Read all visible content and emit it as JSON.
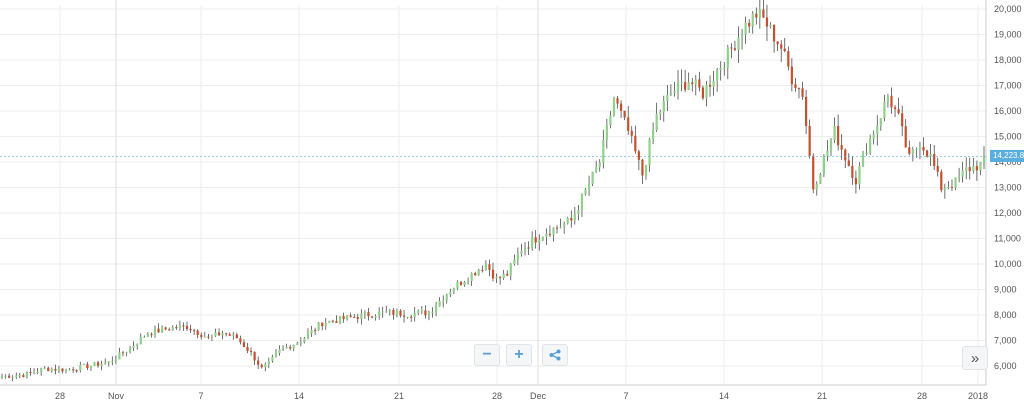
{
  "chart_data": {
    "type": "candlestick",
    "y_ticks": [
      "20,000",
      "19,000",
      "18,000",
      "17,000",
      "16,000",
      "15,000",
      "14,000",
      "13,000",
      "12,000",
      "11,000",
      "10,000",
      "9,000",
      "8,000",
      "7,000",
      "6,000"
    ],
    "y_range": [
      5400,
      20100
    ],
    "x_ticks": [
      "28",
      "Nov",
      "7",
      "14",
      "21",
      "28",
      "Dec",
      "7",
      "14",
      "21",
      "28",
      "2018"
    ],
    "current_price_label": "14,223.8",
    "current_price": 14223.8,
    "grid": true,
    "colors": {
      "up": "#8fd18a",
      "down": "#c5502f",
      "wick": "#333333",
      "grid": "#eeeeee",
      "accent": "#5aaede"
    },
    "anchors": [
      [
        0,
        5600
      ],
      [
        6,
        5650
      ],
      [
        12,
        5900
      ],
      [
        18,
        5850
      ],
      [
        24,
        6000
      ],
      [
        30,
        6150
      ],
      [
        36,
        6700
      ],
      [
        41,
        7300
      ],
      [
        48,
        7500
      ],
      [
        52,
        7550
      ],
      [
        58,
        7100
      ],
      [
        62,
        7300
      ],
      [
        66,
        7100
      ],
      [
        70,
        6500
      ],
      [
        73,
        5900
      ],
      [
        75,
        6100
      ],
      [
        78,
        6600
      ],
      [
        84,
        7000
      ],
      [
        90,
        7700
      ],
      [
        96,
        7850
      ],
      [
        102,
        8000
      ],
      [
        108,
        8100
      ],
      [
        114,
        8050
      ],
      [
        120,
        8100
      ],
      [
        126,
        9000
      ],
      [
        132,
        9600
      ],
      [
        136,
        10000
      ],
      [
        139,
        9400
      ],
      [
        142,
        9600
      ],
      [
        146,
        10600
      ],
      [
        152,
        11200
      ],
      [
        160,
        11700
      ],
      [
        168,
        14000
      ],
      [
        172,
        16500
      ],
      [
        176,
        15200
      ],
      [
        180,
        13500
      ],
      [
        184,
        15800
      ],
      [
        188,
        16700
      ],
      [
        193,
        17200
      ],
      [
        197,
        16700
      ],
      [
        201,
        17600
      ],
      [
        204,
        18200
      ],
      [
        208,
        19200
      ],
      [
        212,
        19800
      ],
      [
        214,
        19600
      ],
      [
        219,
        18500
      ],
      [
        222,
        17300
      ],
      [
        225,
        16700
      ],
      [
        228,
        13000
      ],
      [
        231,
        14100
      ],
      [
        234,
        15200
      ],
      [
        237,
        14200
      ],
      [
        240,
        13300
      ],
      [
        243,
        14600
      ],
      [
        246,
        15500
      ],
      [
        249,
        16600
      ],
      [
        252,
        15700
      ],
      [
        255,
        14100
      ],
      [
        258,
        14800
      ],
      [
        261,
        14200
      ],
      [
        264,
        13000
      ],
      [
        268,
        13200
      ],
      [
        271,
        13700
      ],
      [
        275,
        13900
      ],
      [
        276,
        14223.8
      ]
    ]
  },
  "controls": {
    "zoom_out_label": "−",
    "zoom_in_label": "+",
    "share_icon": "share-icon",
    "scroll_label": "»"
  }
}
